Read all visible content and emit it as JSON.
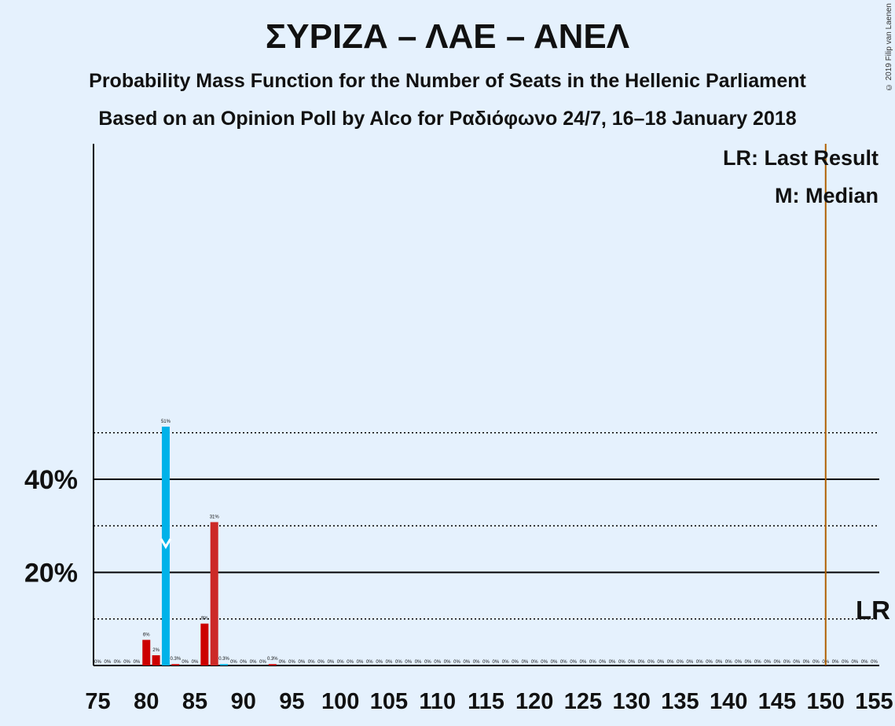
{
  "title": "ΣΥΡΙΖΑ – ΛΑΕ – ΑΝΕΛ",
  "subtitle1": "Probability Mass Function for the Number of Seats in the Hellenic Parliament",
  "subtitle2": "Based on an Opinion Poll by Alco for Ραδιόφωνο 24/7, 16–18 January 2018",
  "copyright": "© 2019 Filip van Laenen",
  "legend": {
    "lr": "LR: Last Result",
    "m": "M: Median",
    "lr_short": "LR"
  },
  "colors": {
    "background": "#e5f1fd",
    "blue": "#00b2e9",
    "red": "#cc2a27",
    "darkred": "#cc0000",
    "lr_line": "#b06000"
  },
  "chart_data": {
    "type": "bar",
    "xlim": [
      75,
      155
    ],
    "ylim": [
      0,
      56
    ],
    "x_ticks": [
      75,
      80,
      85,
      90,
      95,
      100,
      105,
      110,
      115,
      120,
      125,
      130,
      135,
      140,
      145,
      150,
      155
    ],
    "y_ticks_labeled": [
      {
        "value": 20,
        "label": "20%"
      },
      {
        "value": 40,
        "label": "40%"
      }
    ],
    "y_gridlines_solid": [
      20,
      40
    ],
    "y_gridlines_dotted": [
      10,
      30,
      50
    ],
    "last_result": 150,
    "median": 82,
    "bars": [
      {
        "x": 80,
        "value": 5.5,
        "label": "6%",
        "color": "darkred"
      },
      {
        "x": 81,
        "value": 2.2,
        "label": "2%",
        "color": "darkred"
      },
      {
        "x": 82,
        "value": 51.3,
        "label": "51%",
        "color": "blue"
      },
      {
        "x": 83,
        "value": 0.3,
        "label": "0.3%",
        "color": "darkred"
      },
      {
        "x": 86,
        "value": 9.0,
        "label": "9%",
        "color": "darkred"
      },
      {
        "x": 87,
        "value": 30.8,
        "label": "31%",
        "color": "red"
      },
      {
        "x": 88,
        "value": 0.3,
        "label": "0.3%",
        "color": "blue"
      },
      {
        "x": 93,
        "value": 0.3,
        "label": "0.3%",
        "color": "darkred"
      }
    ],
    "zero_label": "0%"
  }
}
